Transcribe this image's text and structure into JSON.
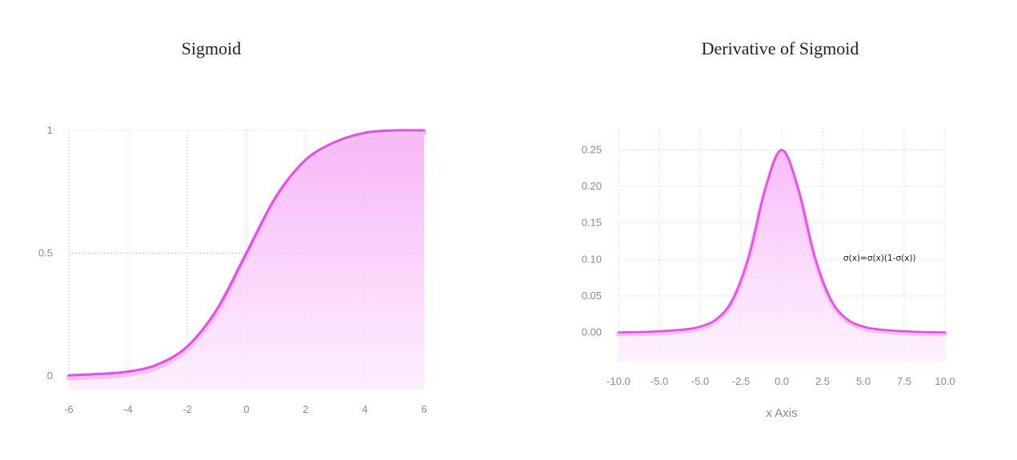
{
  "chart_data": [
    {
      "type": "area",
      "title": "Sigmoid",
      "xlabel": "",
      "ylabel": "",
      "xlim": [
        -6,
        6
      ],
      "ylim": [
        0,
        1
      ],
      "x_ticks": [
        "-6",
        "-4",
        "-2",
        "0",
        "2",
        "4",
        "6"
      ],
      "y_ticks": [
        "0",
        "0.5",
        "1"
      ],
      "grid": true,
      "color": "#e74be8",
      "x": [
        -6,
        -5,
        -4,
        -3,
        -2,
        -1,
        0,
        1,
        2,
        3,
        4,
        5,
        6
      ],
      "y": [
        0.003,
        0.008,
        0.018,
        0.047,
        0.12,
        0.27,
        0.5,
        0.73,
        0.88,
        0.953,
        0.99,
        1.0,
        1.0
      ]
    },
    {
      "type": "area",
      "title": "Derivative of Sigmoid",
      "xlabel": "x Axis",
      "ylabel": "",
      "xlim": [
        -10,
        10
      ],
      "ylim": [
        -0.04,
        0.28
      ],
      "x_ticks": [
        "-10.0",
        "-5.0",
        "-5.0",
        "-2.5",
        "0.0",
        "2.5",
        "5.0",
        "7.5",
        "10.0"
      ],
      "y_ticks": [
        "0.00",
        "0.05",
        "0.10",
        "0.15",
        "0.20",
        "0.25"
      ],
      "grid": true,
      "color": "#e74be8",
      "annotation": "σ(x)=σ(x)(1-σ(x))",
      "x": [
        -10,
        -8,
        -6,
        -5,
        -4,
        -3,
        -2,
        -1,
        0,
        1,
        2,
        3,
        4,
        5,
        6,
        8,
        10
      ],
      "y": [
        0.0,
        0.001,
        0.004,
        0.008,
        0.018,
        0.045,
        0.105,
        0.197,
        0.25,
        0.197,
        0.105,
        0.045,
        0.018,
        0.008,
        0.004,
        0.001,
        0.0
      ]
    }
  ]
}
